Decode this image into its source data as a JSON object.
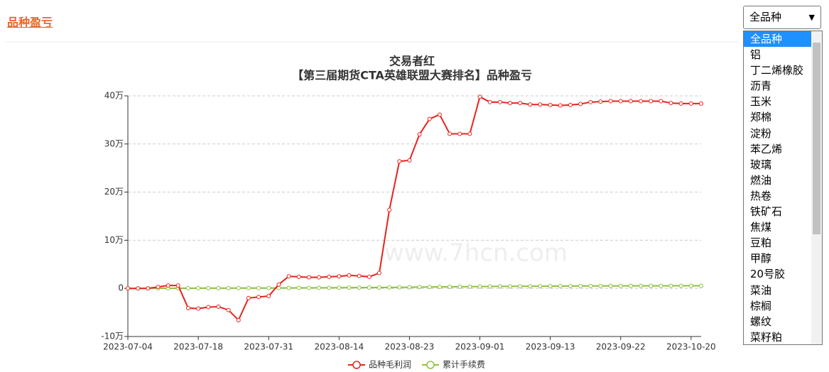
{
  "header": {
    "title": "品种盈亏"
  },
  "selector": {
    "selected": "全品种",
    "options": [
      "全品种",
      "铝",
      "丁二烯橡胶",
      "沥青",
      "玉米",
      "郑棉",
      "淀粉",
      "苯乙烯",
      "玻璃",
      "燃油",
      "热卷",
      "铁矿石",
      "焦煤",
      "豆粕",
      "甲醇",
      "20号胶",
      "菜油",
      "棕榈",
      "螺纹",
      "菜籽粕"
    ]
  },
  "chart_data": {
    "type": "line",
    "title": "交易者红",
    "subtitle": "【第三届期货CTA英雄联盟大赛排名】品种盈亏",
    "watermark": "www.7hcn.com",
    "categories": [
      "2023-07-04",
      null,
      null,
      null,
      null,
      null,
      null,
      "2023-07-18",
      null,
      null,
      null,
      null,
      null,
      null,
      "2023-07-31",
      null,
      null,
      null,
      null,
      null,
      null,
      "2023-08-14",
      null,
      null,
      null,
      null,
      null,
      null,
      "2023-08-23",
      null,
      null,
      null,
      null,
      null,
      null,
      "2023-09-01",
      null,
      null,
      null,
      null,
      null,
      null,
      "2023-09-13",
      null,
      null,
      null,
      null,
      null,
      null,
      "2023-09-22",
      null,
      null,
      null,
      null,
      null,
      null,
      "2023-10-20",
      null
    ],
    "series": [
      {
        "name": "品种毛利润",
        "color": "#e8231c",
        "values": [
          0,
          0,
          0,
          0.3,
          0.6,
          0.6,
          -4.1,
          -4.2,
          -3.9,
          -3.8,
          -4.5,
          -6.6,
          -2.0,
          -1.8,
          -1.6,
          0.8,
          2.5,
          2.4,
          2.3,
          2.3,
          2.4,
          2.5,
          2.7,
          2.6,
          2.4,
          3.2,
          16.3,
          26.4,
          26.6,
          32.0,
          35.2,
          36.1,
          32.1,
          32.1,
          32.1,
          39.8,
          38.7,
          38.7,
          38.5,
          38.5,
          38.2,
          38.2,
          38.1,
          38.0,
          38.1,
          38.3,
          38.7,
          38.8,
          38.9,
          38.9,
          38.9,
          38.9,
          38.9,
          38.9,
          38.5,
          38.4,
          38.4,
          38.4
        ]
      },
      {
        "name": "累计手续费",
        "color": "#8fc03f",
        "values": [
          0,
          0.01,
          0.01,
          0.02,
          0.02,
          0.03,
          0.03,
          0.04,
          0.04,
          0.05,
          0.05,
          0.06,
          0.06,
          0.07,
          0.07,
          0.08,
          0.09,
          0.1,
          0.11,
          0.12,
          0.13,
          0.14,
          0.15,
          0.16,
          0.17,
          0.18,
          0.2,
          0.22,
          0.24,
          0.26,
          0.28,
          0.3,
          0.32,
          0.34,
          0.36,
          0.38,
          0.4,
          0.41,
          0.42,
          0.43,
          0.44,
          0.45,
          0.46,
          0.47,
          0.48,
          0.49,
          0.5,
          0.5,
          0.51,
          0.51,
          0.52,
          0.52,
          0.53,
          0.53,
          0.54,
          0.54,
          0.55,
          0.55
        ]
      }
    ],
    "ylim": [
      -10,
      40
    ],
    "yticks": [
      {
        "value": -10,
        "label": "-10万"
      },
      0,
      {
        "value": 10,
        "label": "10万"
      },
      {
        "value": 20,
        "label": "20万"
      },
      {
        "value": 30,
        "label": "30万"
      },
      {
        "value": 40,
        "label": "40万"
      }
    ],
    "grid": true,
    "legend": "bottom"
  }
}
